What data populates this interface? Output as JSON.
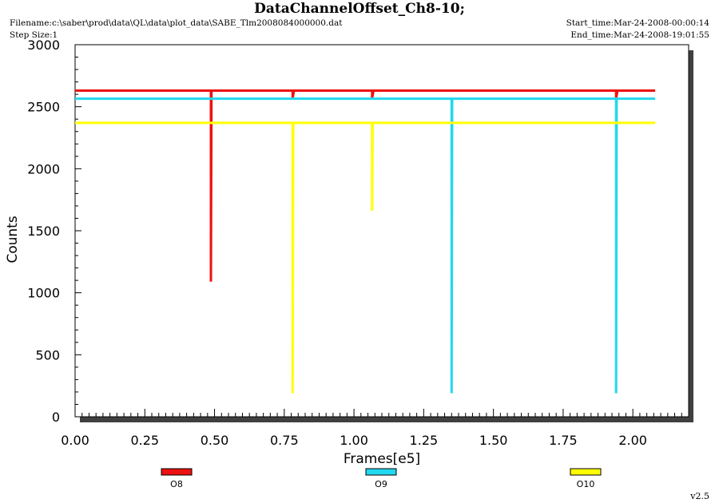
{
  "header": {
    "title": "DataChannelOffset_Ch8-10;",
    "filename": "Filename:c:\\saber\\prod\\data\\QL\\data\\plot_data\\SABE_Tlm2008084000000.dat",
    "step_size": "Step Size:1",
    "start_time": "Start_time:Mar-24-2008-00:00:14",
    "end_time": "End_time:Mar-24-2008-19:01:55"
  },
  "footer": {
    "version": "v2.5"
  },
  "colors": {
    "series_red": "#ee1111",
    "series_cyan": "#22d8ee",
    "series_yellow": "#ffff00",
    "frame_shadow": "#404040"
  },
  "chart_data": {
    "type": "line",
    "title": "DataChannelOffset_Ch8-10;",
    "xlabel": "Frames[e5]",
    "ylabel": "Counts",
    "xlim": [
      0,
      2.2
    ],
    "ylim": [
      0,
      3000
    ],
    "x_ticks": [
      "0.00",
      "0.25",
      "0.50",
      "0.75",
      "1.00",
      "1.25",
      "1.50",
      "1.75",
      "2.00"
    ],
    "y_ticks": [
      "0",
      "500",
      "1000",
      "1500",
      "2000",
      "2500",
      "3000"
    ],
    "grid": false,
    "legend_position": "bottom",
    "series": [
      {
        "name": "O8",
        "color": "#ee1111",
        "points": [
          [
            0.0,
            2630
          ],
          [
            0.487,
            2630
          ],
          [
            0.487,
            1090
          ],
          [
            0.489,
            2630
          ],
          [
            0.78,
            2630
          ],
          [
            0.78,
            2570
          ],
          [
            0.785,
            2630
          ],
          [
            1.065,
            2630
          ],
          [
            1.065,
            2570
          ],
          [
            1.07,
            2630
          ],
          [
            1.94,
            2630
          ],
          [
            1.94,
            2570
          ],
          [
            1.945,
            2630
          ],
          [
            2.08,
            2630
          ]
        ]
      },
      {
        "name": "O9",
        "color": "#22d8ee",
        "points": [
          [
            0.0,
            2565
          ],
          [
            1.35,
            2565
          ],
          [
            1.35,
            190
          ],
          [
            1.352,
            2565
          ],
          [
            1.94,
            2565
          ],
          [
            1.94,
            190
          ],
          [
            1.942,
            2565
          ],
          [
            2.08,
            2565
          ]
        ]
      },
      {
        "name": "O10",
        "color": "#ffff00",
        "points": [
          [
            0.0,
            2370
          ],
          [
            0.78,
            2370
          ],
          [
            0.78,
            190
          ],
          [
            0.782,
            2370
          ],
          [
            1.065,
            2370
          ],
          [
            1.065,
            1660
          ],
          [
            1.067,
            2370
          ],
          [
            2.08,
            2370
          ]
        ]
      }
    ]
  }
}
